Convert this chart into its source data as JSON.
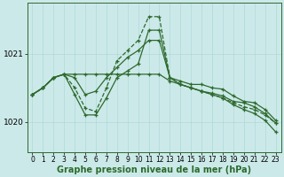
{
  "title": "Graphe pression niveau de la mer (hPa)",
  "bg_color": "#cce9e9",
  "line_color": "#2d6a2d",
  "xlim": [
    -0.5,
    23.5
  ],
  "ylim": [
    1019.55,
    1021.75
  ],
  "yticks": [
    1020,
    1021
  ],
  "xticks": [
    0,
    1,
    2,
    3,
    4,
    5,
    6,
    7,
    8,
    9,
    10,
    11,
    12,
    13,
    14,
    15,
    16,
    17,
    18,
    19,
    20,
    21,
    22,
    23
  ],
  "series": [
    {
      "y": [
        1020.4,
        1020.5,
        1020.65,
        1020.7,
        1020.65,
        1020.4,
        1020.45,
        1020.65,
        1020.8,
        1020.95,
        1021.05,
        1021.2,
        1021.2,
        1020.65,
        1020.55,
        1020.5,
        1020.45,
        1020.42,
        1020.38,
        1020.3,
        1020.28,
        1020.22,
        1020.12,
        1019.98
      ],
      "linestyle": "-",
      "linewidth": 0.9
    },
    {
      "y": [
        1020.4,
        1020.5,
        1020.65,
        1020.7,
        1020.5,
        1020.2,
        1020.15,
        1020.5,
        1020.9,
        1021.05,
        1021.2,
        1021.55,
        1021.55,
        1020.65,
        1020.55,
        1020.5,
        1020.45,
        1020.4,
        1020.35,
        1020.28,
        1020.22,
        1020.18,
        1020.1,
        1019.98
      ],
      "linestyle": "--",
      "linewidth": 0.9
    },
    {
      "y": [
        1020.4,
        1020.5,
        1020.65,
        1020.7,
        1020.4,
        1020.1,
        1020.1,
        1020.35,
        1020.65,
        1020.75,
        1020.85,
        1021.35,
        1021.35,
        1020.65,
        1020.6,
        1020.55,
        1020.55,
        1020.5,
        1020.48,
        1020.38,
        1020.3,
        1020.28,
        1020.18,
        1020.02
      ],
      "linestyle": "-",
      "linewidth": 0.9
    },
    {
      "y": [
        1020.4,
        1020.5,
        1020.65,
        1020.7,
        1020.7,
        1020.7,
        1020.7,
        1020.7,
        1020.7,
        1020.7,
        1020.7,
        1020.7,
        1020.7,
        1020.6,
        1020.55,
        1020.5,
        1020.45,
        1020.4,
        1020.35,
        1020.25,
        1020.18,
        1020.12,
        1020.02,
        1019.85
      ],
      "linestyle": "-",
      "linewidth": 0.9
    }
  ],
  "xlabel_fontsize": 5.5,
  "ylabel_fontsize": 6.5,
  "title_fontsize": 7.0,
  "tick_labelsize": 6.5
}
